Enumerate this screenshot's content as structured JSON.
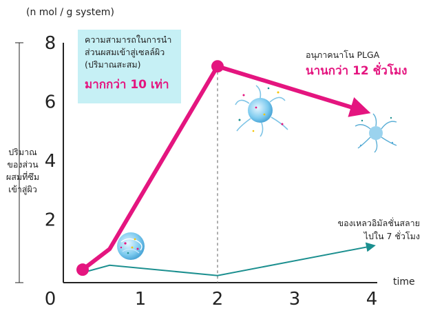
{
  "chart_data": {
    "type": "line",
    "y_unit_label": "(n mol / g system)",
    "ylabel": "ปริมาณของส่วนผสมที่ซึมเข้าสู่ผิว",
    "xlabel": "time",
    "ylim": [
      0,
      8
    ],
    "xlim": [
      0,
      4
    ],
    "y_ticks": [
      "0",
      "2",
      "4",
      "6",
      "8"
    ],
    "x_ticks": [
      "1",
      "2",
      "3",
      "4"
    ],
    "grid": false,
    "series": [
      {
        "color": "#e4157f",
        "points": [
          [
            0.25,
            0.3
          ],
          [
            0.6,
            1.0
          ],
          [
            2.0,
            7.2
          ],
          [
            4.0,
            5.6
          ]
        ]
      },
      {
        "color": "#1b8f8f",
        "points": [
          [
            0.25,
            0.2
          ],
          [
            0.6,
            0.45
          ],
          [
            2.0,
            0.1
          ],
          [
            4.0,
            1.1
          ]
        ]
      }
    ],
    "annotations": {
      "callout_text": "ความสามารถในการนำส่วนผสมเข้าสู่เซลล์ผิว (ปริมาณสะสม)",
      "callout_highlight": "มากกว่า 10 เท่า",
      "plga_text": "อนุภาคนาโน PLGA",
      "plga_highlight": "นานกว่า 12 ชั่วโมง",
      "other_text": "ของเหลวอิมัลชั่นสลายไปใน 7 ชั่วโมง"
    }
  }
}
